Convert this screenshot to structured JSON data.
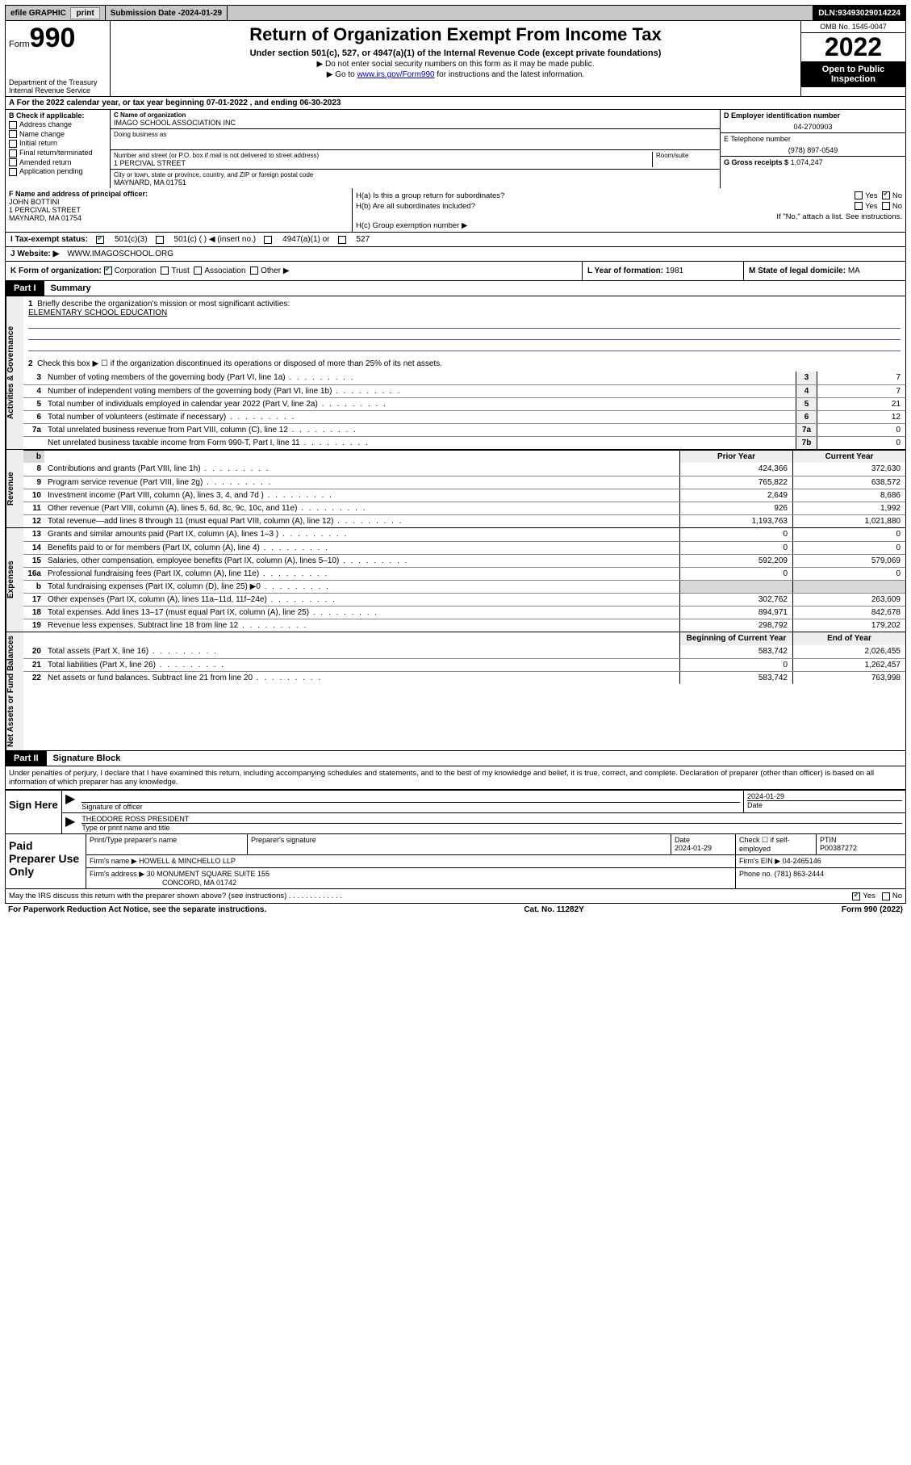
{
  "topbar": {
    "efile": "efile GRAPHIC",
    "print": "print",
    "subdate_label": "Submission Date - ",
    "subdate": "2024-01-29",
    "dln_label": "DLN: ",
    "dln": "93493029014224"
  },
  "header": {
    "form_word": "Form",
    "form_num": "990",
    "dept1": "Department of the Treasury",
    "dept2": "Internal Revenue Service",
    "title": "Return of Organization Exempt From Income Tax",
    "sub": "Under section 501(c), 527, or 4947(a)(1) of the Internal Revenue Code (except private foundations)",
    "note1": "▶ Do not enter social security numbers on this form as it may be made public.",
    "note2_pre": "▶ Go to ",
    "note2_link": "www.irs.gov/Form990",
    "note2_post": " for instructions and the latest information.",
    "omb": "OMB No. 1545-0047",
    "year": "2022",
    "open1": "Open to Public",
    "open2": "Inspection"
  },
  "rowA": {
    "text": "A For the 2022 calendar year, or tax year beginning 07-01-2022    , and ending 06-30-2023"
  },
  "B": {
    "header": "B Check if applicable:",
    "opts": [
      "Address change",
      "Name change",
      "Initial return",
      "Final return/terminated",
      "Amended return",
      "Application pending"
    ]
  },
  "C": {
    "name_lbl": "C Name of organization",
    "name": "IMAGO SCHOOL ASSOCIATION INC",
    "dba_lbl": "Doing business as",
    "addr_lbl": "Number and street (or P.O. box if mail is not delivered to street address)",
    "room_lbl": "Room/suite",
    "addr": "1 PERCIVAL STREET",
    "city_lbl": "City or town, state or province, country, and ZIP or foreign postal code",
    "city": "MAYNARD, MA  01751"
  },
  "D": {
    "lbl": "D Employer identification number",
    "val": "04-2700903"
  },
  "E": {
    "lbl": "E Telephone number",
    "val": "(978) 897-0549"
  },
  "G": {
    "lbl": "G Gross receipts $",
    "val": "1,074,247"
  },
  "F": {
    "lbl": "F  Name and address of principal officer:",
    "name": "JOHN BOTTINI",
    "addr1": "1 PERCIVAL STREET",
    "addr2": "MAYNARD, MA  01754"
  },
  "H": {
    "a": "H(a)  Is this a group return for subordinates?",
    "b": "H(b)  Are all subordinates included?",
    "bnote": "If \"No,\" attach a list. See instructions.",
    "c": "H(c)  Group exemption number ▶",
    "yes": "Yes",
    "no": "No"
  },
  "I": {
    "lbl": "I   Tax-exempt status:",
    "o1": "501(c)(3)",
    "o2": "501(c) (   ) ◀ (insert no.)",
    "o3": "4947(a)(1) or",
    "o4": "527"
  },
  "J": {
    "lbl": "J   Website: ▶",
    "val": "WWW.IMAGOSCHOOL.ORG"
  },
  "K": {
    "lbl": "K Form of organization:",
    "o1": "Corporation",
    "o2": "Trust",
    "o3": "Association",
    "o4": "Other ▶"
  },
  "L": {
    "lbl": "L Year of formation: ",
    "val": "1981"
  },
  "M": {
    "lbl": "M State of legal domicile: ",
    "val": "MA"
  },
  "part1": {
    "tag": "Part I",
    "title": "Summary"
  },
  "summary": {
    "q1": "Briefly describe the organization's mission or most significant activities:",
    "mission": "ELEMENTARY SCHOOL EDUCATION",
    "q2": "Check this box ▶ ☐  if the organization discontinued its operations or disposed of more than 25% of its net assets.",
    "lines_gov": [
      {
        "n": "3",
        "d": "Number of voting members of the governing body (Part VI, line 1a)",
        "box": "3",
        "v": "7"
      },
      {
        "n": "4",
        "d": "Number of independent voting members of the governing body (Part VI, line 1b)",
        "box": "4",
        "v": "7"
      },
      {
        "n": "5",
        "d": "Total number of individuals employed in calendar year 2022 (Part V, line 2a)",
        "box": "5",
        "v": "21"
      },
      {
        "n": "6",
        "d": "Total number of volunteers (estimate if necessary)",
        "box": "6",
        "v": "12"
      },
      {
        "n": "7a",
        "d": "Total unrelated business revenue from Part VIII, column (C), line 12",
        "box": "7a",
        "v": "0"
      },
      {
        "n": "",
        "d": "Net unrelated business taxable income from Form 990-T, Part I, line 11",
        "box": "7b",
        "v": "0"
      }
    ],
    "colhdr_prior": "Prior Year",
    "colhdr_curr": "Current Year",
    "rev": [
      {
        "n": "8",
        "d": "Contributions and grants (Part VIII, line 1h)",
        "p": "424,366",
        "c": "372,630"
      },
      {
        "n": "9",
        "d": "Program service revenue (Part VIII, line 2g)",
        "p": "765,822",
        "c": "638,572"
      },
      {
        "n": "10",
        "d": "Investment income (Part VIII, column (A), lines 3, 4, and 7d )",
        "p": "2,649",
        "c": "8,686"
      },
      {
        "n": "11",
        "d": "Other revenue (Part VIII, column (A), lines 5, 6d, 8c, 9c, 10c, and 11e)",
        "p": "926",
        "c": "1,992"
      },
      {
        "n": "12",
        "d": "Total revenue—add lines 8 through 11 (must equal Part VIII, column (A), line 12)",
        "p": "1,193,763",
        "c": "1,021,880"
      }
    ],
    "exp": [
      {
        "n": "13",
        "d": "Grants and similar amounts paid (Part IX, column (A), lines 1–3 )",
        "p": "0",
        "c": "0"
      },
      {
        "n": "14",
        "d": "Benefits paid to or for members (Part IX, column (A), line 4)",
        "p": "0",
        "c": "0"
      },
      {
        "n": "15",
        "d": "Salaries, other compensation, employee benefits (Part IX, column (A), lines 5–10)",
        "p": "592,209",
        "c": "579,069"
      },
      {
        "n": "16a",
        "d": "Professional fundraising fees (Part IX, column (A), line 11e)",
        "p": "0",
        "c": "0"
      },
      {
        "n": "b",
        "d": "Total fundraising expenses (Part IX, column (D), line 25) ▶0",
        "p": "",
        "c": "",
        "shade": true
      },
      {
        "n": "17",
        "d": "Other expenses (Part IX, column (A), lines 11a–11d, 11f–24e)",
        "p": "302,762",
        "c": "263,609"
      },
      {
        "n": "18",
        "d": "Total expenses. Add lines 13–17 (must equal Part IX, column (A), line 25)",
        "p": "894,971",
        "c": "842,678"
      },
      {
        "n": "19",
        "d": "Revenue less expenses. Subtract line 18 from line 12",
        "p": "298,792",
        "c": "179,202"
      }
    ],
    "na_hdr_beg": "Beginning of Current Year",
    "na_hdr_end": "End of Year",
    "na": [
      {
        "n": "20",
        "d": "Total assets (Part X, line 16)",
        "p": "583,742",
        "c": "2,026,455"
      },
      {
        "n": "21",
        "d": "Total liabilities (Part X, line 26)",
        "p": "0",
        "c": "1,262,457"
      },
      {
        "n": "22",
        "d": "Net assets or fund balances. Subtract line 21 from line 20",
        "p": "583,742",
        "c": "763,998"
      }
    ]
  },
  "vlabels": {
    "gov": "Activities & Governance",
    "rev": "Revenue",
    "exp": "Expenses",
    "na": "Net Assets or Fund Balances"
  },
  "part2": {
    "tag": "Part II",
    "title": "Signature Block"
  },
  "penalty": "Under penalties of perjury, I declare that I have examined this return, including accompanying schedules and statements, and to the best of my knowledge and belief, it is true, correct, and complete. Declaration of preparer (other than officer) is based on all information of which preparer has any knowledge.",
  "sign": {
    "here": "Sign Here",
    "sig_lbl": "Signature of officer",
    "date_lbl": "Date",
    "date": "2024-01-29",
    "name": "THEODORE ROSS PRESIDENT",
    "name_lbl": "Type or print name and title"
  },
  "paid": {
    "title": "Paid Preparer Use Only",
    "h1": "Print/Type preparer's name",
    "h2": "Preparer's signature",
    "h3": "Date",
    "h3v": "2024-01-29",
    "h4": "Check ☐ if self-employed",
    "h5": "PTIN",
    "h5v": "P00387272",
    "firm_lbl": "Firm's name    ▶",
    "firm": "HOWELL & MINCHELLO LLP",
    "ein_lbl": "Firm's EIN ▶",
    "ein": "04-2465146",
    "addr_lbl": "Firm's address ▶",
    "addr1": "30 MONUMENT SQUARE SUITE 155",
    "addr2": "CONCORD, MA  01742",
    "phone_lbl": "Phone no.",
    "phone": "(781) 863-2444"
  },
  "discuss": {
    "q": "May the IRS discuss this return with the preparer shown above? (see instructions)   .   .   .   .   .   .   .   .   .   .   .   .   .",
    "yes": "Yes",
    "no": "No"
  },
  "footer": {
    "l": "For Paperwork Reduction Act Notice, see the separate instructions.",
    "m": "Cat. No. 11282Y",
    "r": "Form 990 (2022)"
  }
}
